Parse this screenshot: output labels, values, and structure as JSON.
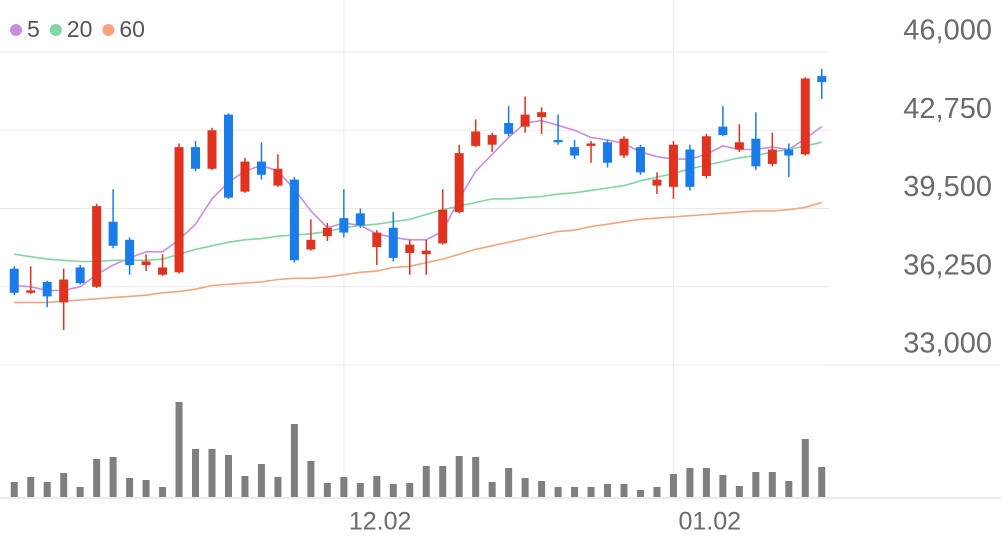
{
  "chart_data": {
    "type": "candlestick",
    "categories": [
      null,
      null,
      null,
      null,
      null,
      null,
      null,
      null,
      null,
      null,
      null,
      null,
      null,
      null,
      null,
      null,
      null,
      null,
      null,
      null,
      "12.02",
      null,
      null,
      null,
      null,
      null,
      null,
      null,
      null,
      null,
      null,
      null,
      null,
      null,
      null,
      null,
      null,
      null,
      null,
      null,
      "01.02",
      null,
      null,
      null,
      null,
      null,
      null,
      null,
      null,
      null
    ],
    "open": [
      37000,
      36000,
      36450,
      35600,
      37050,
      36250,
      38950,
      38200,
      37150,
      36750,
      36850,
      42050,
      41150,
      43400,
      40200,
      41450,
      40450,
      40700,
      37800,
      38350,
      39100,
      39300,
      37900,
      38700,
      37650,
      37600,
      38050,
      39350,
      42100,
      42150,
      43050,
      42900,
      43300,
      42350,
      42050,
      42100,
      42250,
      41700,
      42050,
      40450,
      40400,
      41950,
      40850,
      42900,
      41950,
      42400,
      41350,
      41950,
      41750,
      45000
    ],
    "high": [
      37100,
      37100,
      36500,
      37000,
      37150,
      39700,
      40300,
      38300,
      37600,
      37600,
      42200,
      42300,
      42850,
      43450,
      41600,
      42250,
      41750,
      40800,
      39050,
      38900,
      40300,
      39500,
      38600,
      39350,
      38200,
      38200,
      40300,
      42150,
      43200,
      42650,
      43750,
      44150,
      43700,
      43400,
      42350,
      42300,
      42350,
      42500,
      42150,
      41000,
      42300,
      42150,
      42600,
      43750,
      43000,
      43500,
      42650,
      42200,
      44950,
      45300
    ],
    "low": [
      35900,
      35950,
      35400,
      34450,
      36350,
      36200,
      37850,
      36750,
      36900,
      36700,
      36800,
      41050,
      41100,
      39900,
      40150,
      40700,
      40400,
      37250,
      37750,
      38150,
      38300,
      38700,
      37150,
      37300,
      36750,
      36750,
      38000,
      39300,
      42050,
      41850,
      42500,
      42650,
      42600,
      42150,
      41550,
      41400,
      41200,
      41600,
      40900,
      40100,
      39900,
      40250,
      40750,
      42500,
      41850,
      41100,
      41250,
      40800,
      41700,
      44050
    ],
    "close": [
      36000,
      36100,
      35850,
      36550,
      36400,
      39600,
      37950,
      37150,
      37300,
      37050,
      42050,
      41150,
      42750,
      39950,
      41450,
      40900,
      41150,
      37350,
      38200,
      38700,
      38500,
      38800,
      38500,
      37450,
      38000,
      37750,
      39450,
      41800,
      42700,
      42550,
      42600,
      43400,
      43500,
      42250,
      41700,
      42200,
      41400,
      42400,
      41000,
      40700,
      42150,
      40400,
      42500,
      42550,
      42250,
      41250,
      41950,
      41700,
      44900,
      44750
    ],
    "up_color": "#e0321e",
    "down_color": "#1a7ce8",
    "ylim": [
      33000,
      46000
    ],
    "yticks": [
      {
        "value": 33000,
        "label": "33,000"
      },
      {
        "value": 36250,
        "label": "36,250"
      },
      {
        "value": 39500,
        "label": "39,500"
      },
      {
        "value": 42750,
        "label": "42,750"
      },
      {
        "value": 46000,
        "label": "46,000"
      }
    ],
    "grid": true,
    "lines": [
      {
        "name": "5",
        "color": "#c98de6",
        "values": [
          36300,
          36250,
          36100,
          36100,
          36250,
          36750,
          37150,
          37450,
          37700,
          37700,
          38200,
          38850,
          39900,
          40600,
          41050,
          41300,
          41050,
          40300,
          39400,
          38700,
          38900,
          38800,
          38450,
          38300,
          38200,
          38200,
          38550,
          39900,
          41050,
          41750,
          42450,
          43050,
          43150,
          42950,
          42750,
          42450,
          42350,
          42200,
          41850,
          41650,
          41550,
          41550,
          41750,
          42100,
          41950,
          41950,
          42050,
          41950,
          42400,
          42900
        ]
      },
      {
        "name": "20",
        "color": "#82d6a0",
        "values": [
          37600,
          37500,
          37400,
          37350,
          37300,
          37300,
          37350,
          37350,
          37350,
          37400,
          37600,
          37800,
          37950,
          38100,
          38200,
          38250,
          38350,
          38400,
          38450,
          38550,
          38700,
          38800,
          38850,
          38950,
          39050,
          39250,
          39450,
          39600,
          39750,
          39900,
          39900,
          39950,
          40000,
          40100,
          40150,
          40250,
          40350,
          40450,
          40650,
          40800,
          40950,
          41150,
          41300,
          41450,
          41600,
          41700,
          41850,
          41950,
          42100,
          42250
        ]
      },
      {
        "name": "60",
        "color": "#f4a57c",
        "values": [
          35600,
          35600,
          35600,
          35650,
          35700,
          35750,
          35800,
          35850,
          35900,
          36000,
          36050,
          36150,
          36300,
          36350,
          36400,
          36450,
          36550,
          36600,
          36600,
          36650,
          36750,
          36850,
          36900,
          37050,
          37100,
          37250,
          37400,
          37600,
          37800,
          37950,
          38100,
          38250,
          38400,
          38550,
          38600,
          38750,
          38850,
          38950,
          39050,
          39100,
          39150,
          39200,
          39250,
          39300,
          39350,
          39400,
          39400,
          39450,
          39550,
          39750
        ]
      }
    ],
    "volume": {
      "color": "#7f7f7f",
      "values": [
        15,
        20,
        15,
        24,
        10,
        38,
        40,
        19,
        17,
        10,
        95,
        48,
        48,
        42,
        21,
        33,
        20,
        73,
        36,
        14,
        20,
        14,
        21,
        13,
        14,
        31,
        31,
        41,
        40,
        15,
        29,
        19,
        16,
        10,
        10,
        10,
        13,
        13,
        7,
        10,
        23,
        29,
        29,
        22,
        11,
        25,
        25,
        16,
        58,
        30
      ]
    }
  }
}
